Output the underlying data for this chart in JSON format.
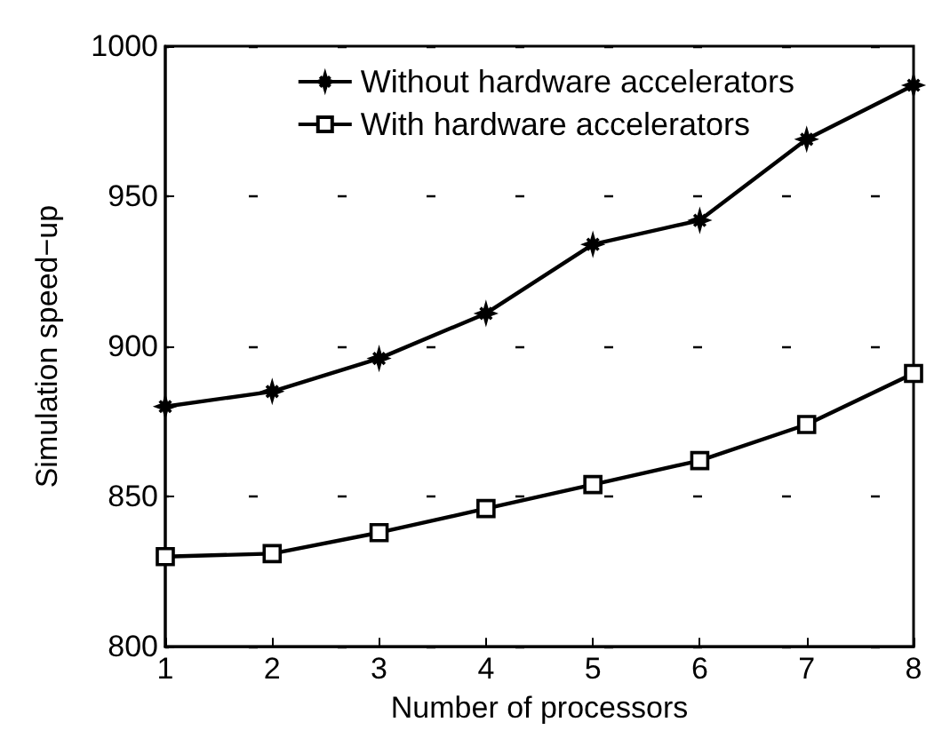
{
  "chart_data": {
    "type": "line",
    "xlabel": "Number of processors",
    "ylabel": "Simulation speed−up",
    "x": [
      1,
      2,
      3,
      4,
      5,
      6,
      7,
      8
    ],
    "xlim": [
      1,
      8
    ],
    "xticks": [
      1,
      2,
      3,
      4,
      5,
      6,
      7,
      8
    ],
    "ylim": [
      800,
      1000
    ],
    "yticks": [
      800,
      850,
      900,
      950,
      1000
    ],
    "grid": "y",
    "legend": "top right",
    "line_style": "solid",
    "series": [
      {
        "name": "Without hardware accelerators",
        "color": "#000000",
        "marker": "cross",
        "values": [
          880,
          885,
          896,
          911,
          934,
          942,
          969,
          987
        ]
      },
      {
        "name": "With hardware accelerators",
        "color": "#000000",
        "marker": "square",
        "values": [
          830,
          831,
          838,
          846,
          854,
          862,
          874,
          891
        ]
      }
    ]
  }
}
